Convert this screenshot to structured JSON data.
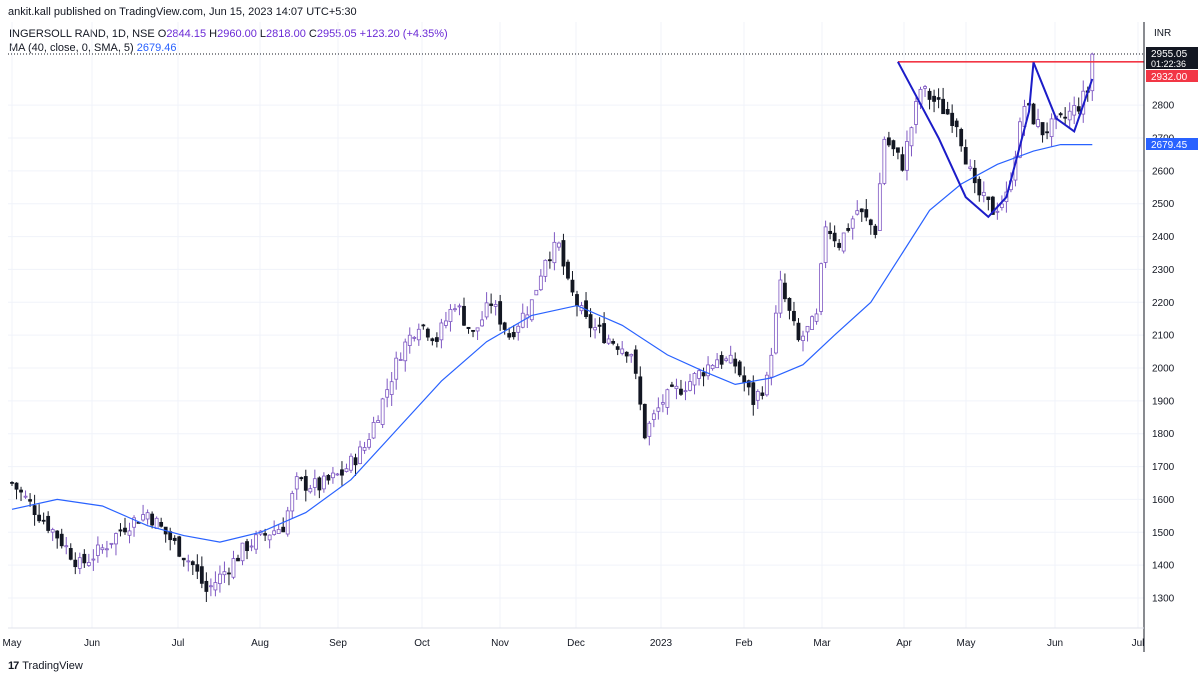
{
  "credit": "ankit.kall published on TradingView.com, Jun 15, 2023 14:07 UTC+5:30",
  "legend": {
    "symbol": "INGERSOLL RAND, 1D, NSE",
    "open_label": "O",
    "open": "2844.15",
    "high_label": "H",
    "high": "2960.00",
    "low_label": "L",
    "low": "2818.00",
    "close_label": "C",
    "close": "2955.05",
    "change": "+123.20 (+4.35%)",
    "ma_label": "MA (40, close, 0, SMA, 5)",
    "ma_value": "2679.46"
  },
  "footer": {
    "brand": "TradingView",
    "mark": "17"
  },
  "price_axis": {
    "currency": "INR",
    "last_price": "2955.05",
    "countdown": "01:22:36",
    "resistance_label": "2932.00",
    "ma_label": "2679.45"
  },
  "chart_data": {
    "type": "candlestick",
    "title": "INGERSOLL RAND, 1D, NSE",
    "y_ticks": [
      1300,
      1400,
      1500,
      1600,
      1700,
      1800,
      1900,
      2000,
      2100,
      2200,
      2300,
      2400,
      2500,
      2600,
      2700,
      2800
    ],
    "ylim": [
      1190,
      3000
    ],
    "x_tick_labels": [
      "May",
      "Jun",
      "Jul",
      "Aug",
      "Sep",
      "Oct",
      "Nov",
      "Dec",
      "2023",
      "Feb",
      "Mar",
      "Apr",
      "May",
      "Jun",
      "Jul"
    ],
    "grid": true,
    "price_path": [
      [
        0,
        1650
      ],
      [
        5,
        1570
      ],
      [
        10,
        1490
      ],
      [
        15,
        1400
      ],
      [
        20,
        1450
      ],
      [
        25,
        1520
      ],
      [
        30,
        1560
      ],
      [
        35,
        1480
      ],
      [
        40,
        1400
      ],
      [
        43,
        1320
      ],
      [
        47,
        1380
      ],
      [
        52,
        1460
      ],
      [
        57,
        1500
      ],
      [
        60,
        1520
      ],
      [
        63,
        1650
      ],
      [
        68,
        1640
      ],
      [
        73,
        1680
      ],
      [
        78,
        1760
      ],
      [
        82,
        1900
      ],
      [
        86,
        2050
      ],
      [
        90,
        2140
      ],
      [
        94,
        2090
      ],
      [
        98,
        2200
      ],
      [
        102,
        2100
      ],
      [
        106,
        2200
      ],
      [
        110,
        2100
      ],
      [
        115,
        2200
      ],
      [
        118,
        2340
      ],
      [
        121,
        2370
      ],
      [
        123,
        2250
      ],
      [
        127,
        2140
      ],
      [
        132,
        2090
      ],
      [
        137,
        2050
      ],
      [
        140,
        1800
      ],
      [
        144,
        1900
      ],
      [
        150,
        1960
      ],
      [
        156,
        2030
      ],
      [
        160,
        2010
      ],
      [
        164,
        1900
      ],
      [
        167,
        1960
      ],
      [
        170,
        2250
      ],
      [
        174,
        2080
      ],
      [
        178,
        2150
      ],
      [
        180,
        2440
      ],
      [
        183,
        2380
      ],
      [
        187,
        2480
      ],
      [
        191,
        2420
      ],
      [
        193,
        2700
      ],
      [
        197,
        2620
      ],
      [
        201,
        2850
      ],
      [
        205,
        2800
      ],
      [
        209,
        2750
      ],
      [
        213,
        2540
      ],
      [
        217,
        2480
      ],
      [
        220,
        2520
      ],
      [
        224,
        2800
      ],
      [
        228,
        2720
      ],
      [
        232,
        2750
      ],
      [
        236,
        2800
      ],
      [
        238,
        2844
      ],
      [
        239,
        2955
      ]
    ],
    "ma_series": {
      "name": "MA (40, close, 0, SMA, 5)",
      "values": [
        [
          0,
          1570
        ],
        [
          10,
          1600
        ],
        [
          20,
          1580
        ],
        [
          30,
          1520
        ],
        [
          38,
          1490
        ],
        [
          46,
          1470
        ],
        [
          55,
          1500
        ],
        [
          65,
          1560
        ],
        [
          75,
          1660
        ],
        [
          85,
          1810
        ],
        [
          95,
          1960
        ],
        [
          105,
          2080
        ],
        [
          115,
          2160
        ],
        [
          125,
          2190
        ],
        [
          135,
          2130
        ],
        [
          145,
          2040
        ],
        [
          153,
          1990
        ],
        [
          160,
          1950
        ],
        [
          168,
          1970
        ],
        [
          175,
          2010
        ],
        [
          182,
          2100
        ],
        [
          190,
          2200
        ],
        [
          197,
          2350
        ],
        [
          203,
          2480
        ],
        [
          210,
          2560
        ],
        [
          218,
          2620
        ],
        [
          226,
          2660
        ],
        [
          232,
          2680
        ],
        [
          239,
          2680
        ]
      ]
    },
    "resistance": {
      "value": 2932.0,
      "from_bar": 196,
      "to_bar": 239
    },
    "cup_and_handle": {
      "cup": [
        [
          196,
          2932
        ],
        [
          205,
          2700
        ],
        [
          211,
          2520
        ],
        [
          216,
          2460
        ],
        [
          220,
          2520
        ],
        [
          225,
          2780
        ],
        [
          226,
          2930
        ]
      ],
      "handle": [
        [
          226,
          2930
        ],
        [
          231,
          2760
        ],
        [
          235,
          2720
        ],
        [
          239,
          2880
        ]
      ]
    }
  }
}
